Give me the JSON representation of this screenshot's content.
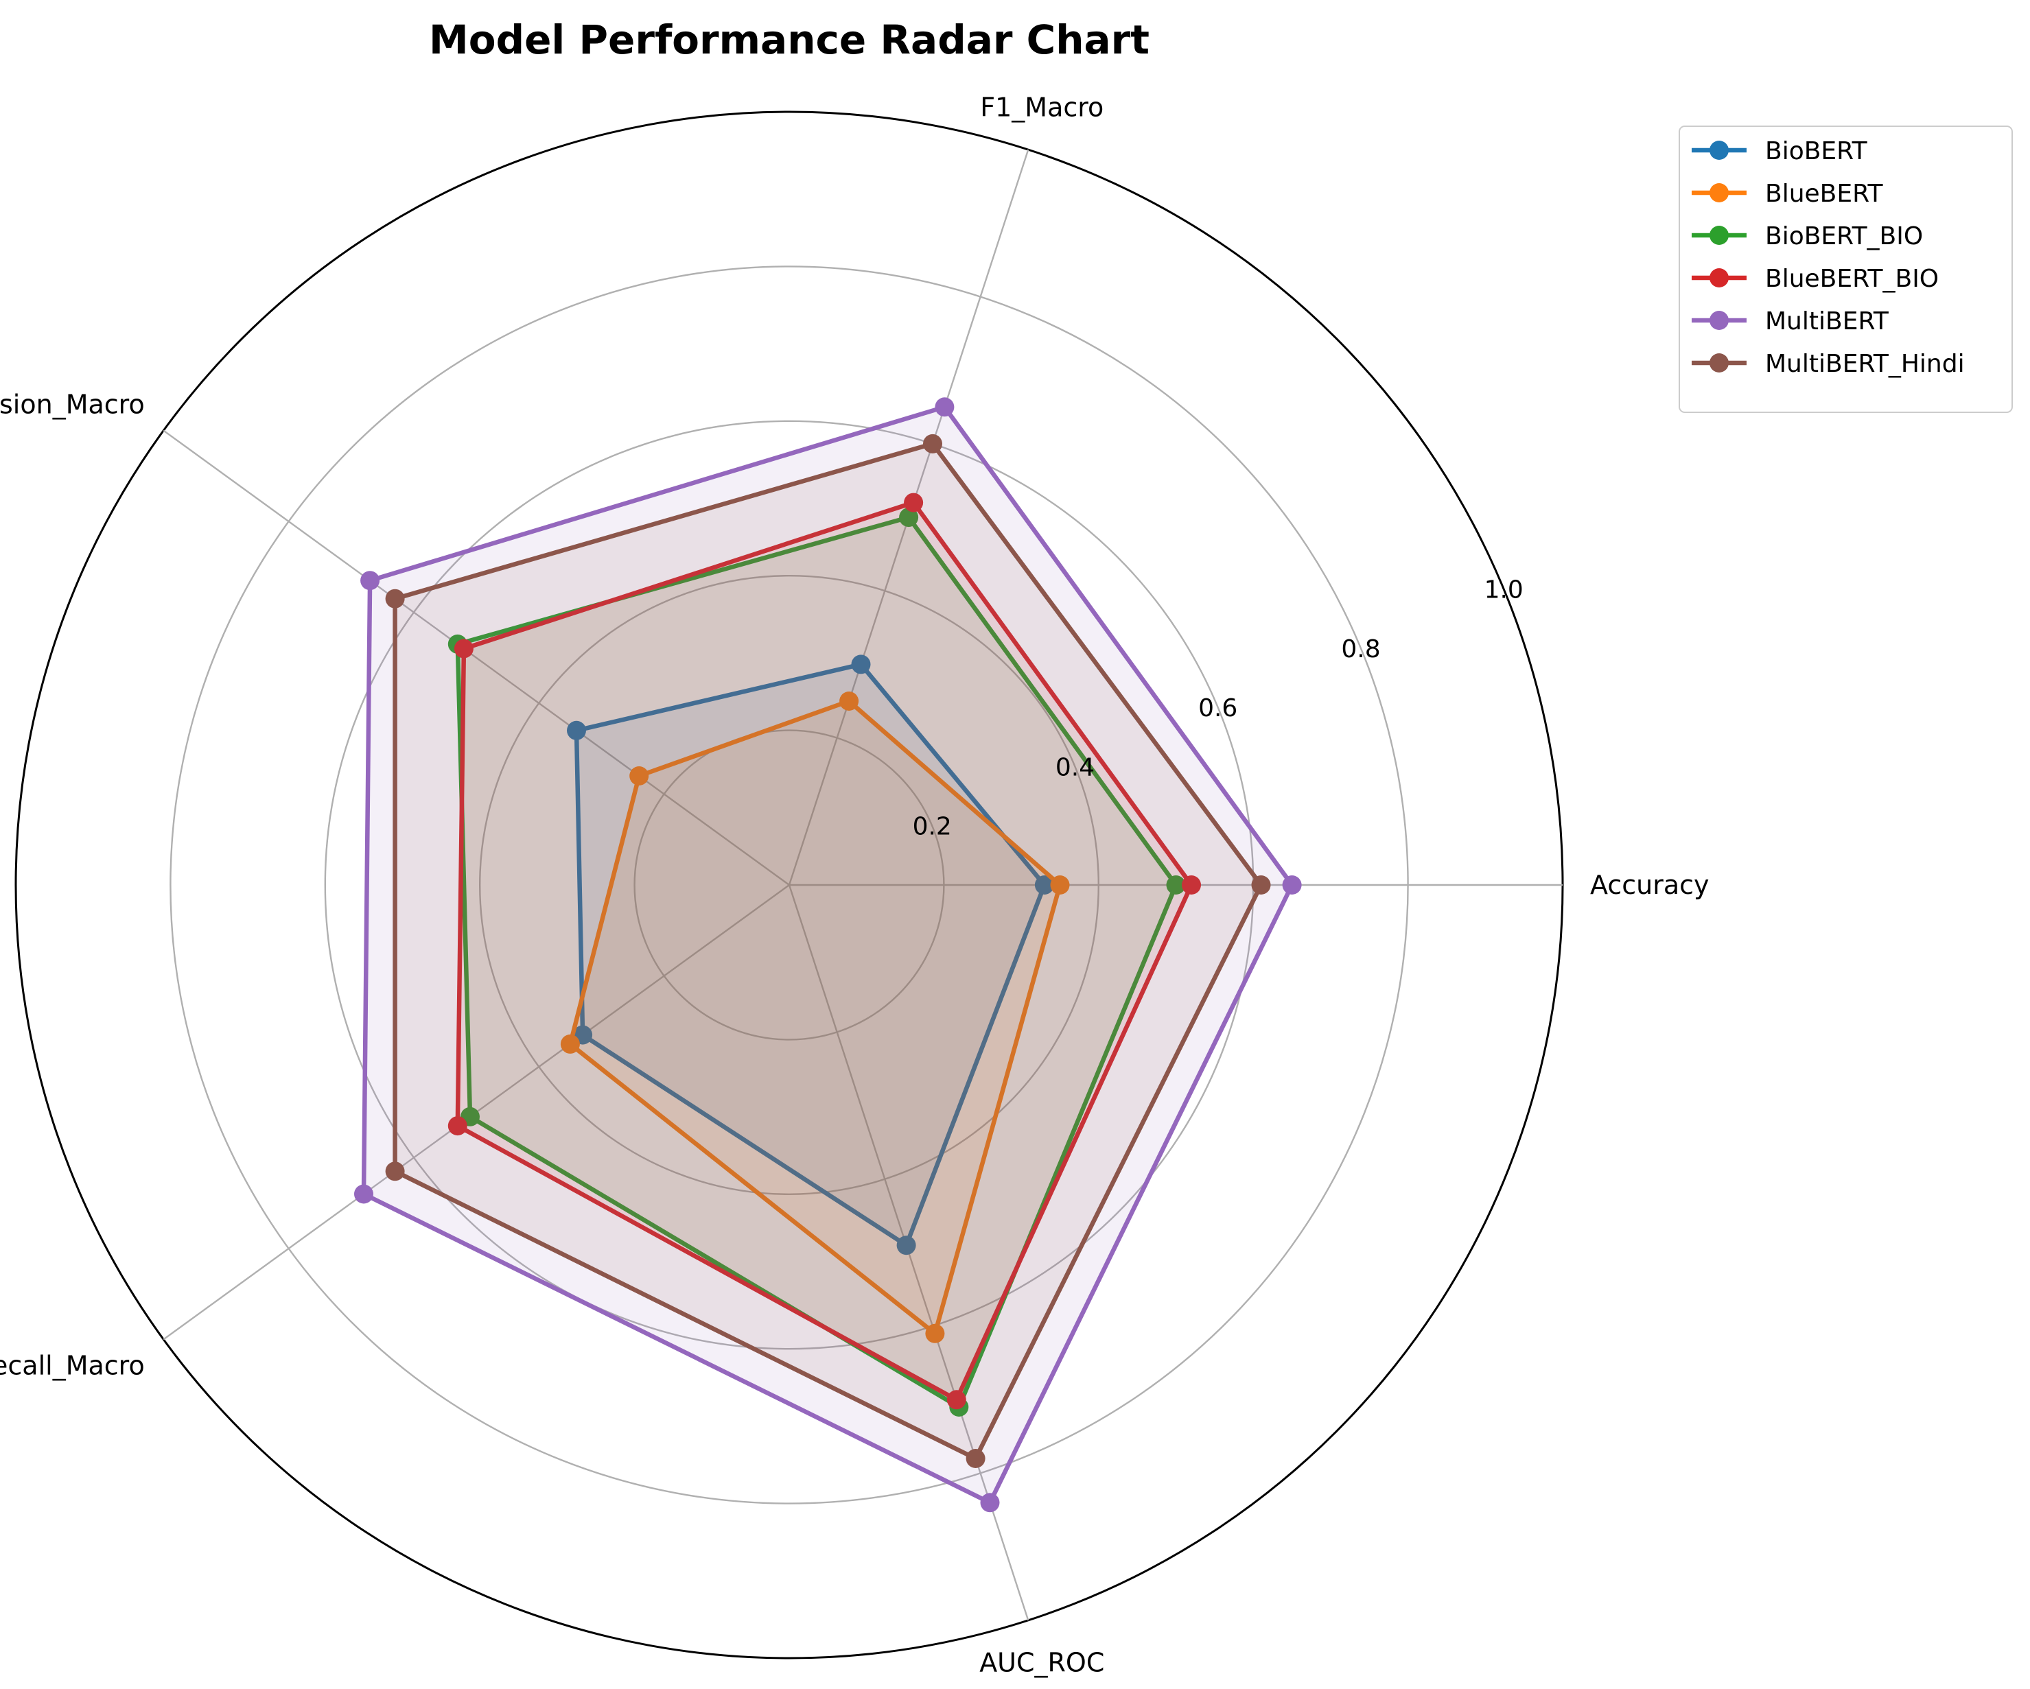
{
  "chart_data": {
    "type": "radar",
    "title": "Model Performance Radar Chart",
    "axes": [
      "Accuracy",
      "F1_Macro",
      "Precision_Macro",
      "Recall_Macro",
      "AUC_ROC"
    ],
    "rlim": [
      0,
      1.0
    ],
    "rticks": [
      0.2,
      0.4,
      0.6,
      0.8,
      1.0
    ],
    "rtick_labels": [
      "0.2",
      "0.4",
      "0.6",
      "0.8",
      "1.0"
    ],
    "grid": true,
    "legend_position": "upper-right-outside",
    "series": [
      {
        "name": "BioBERT",
        "color": "#1f77b4",
        "values": [
          0.33,
          0.3,
          0.34,
          0.33,
          0.49
        ]
      },
      {
        "name": "BlueBERT",
        "color": "#ff7f0e",
        "values": [
          0.35,
          0.25,
          0.24,
          0.35,
          0.61
        ]
      },
      {
        "name": "BioBERT_BIO",
        "color": "#2ca02c",
        "values": [
          0.5,
          0.5,
          0.53,
          0.51,
          0.71
        ]
      },
      {
        "name": "BlueBERT_BIO",
        "color": "#d62728",
        "values": [
          0.52,
          0.52,
          0.52,
          0.53,
          0.7
        ]
      },
      {
        "name": "MultiBERT",
        "color": "#9467bd",
        "values": [
          0.65,
          0.65,
          0.67,
          0.68,
          0.84
        ]
      },
      {
        "name": "MultiBERT_Hindi",
        "color": "#8c564b",
        "values": [
          0.61,
          0.6,
          0.63,
          0.63,
          0.78
        ]
      }
    ]
  }
}
